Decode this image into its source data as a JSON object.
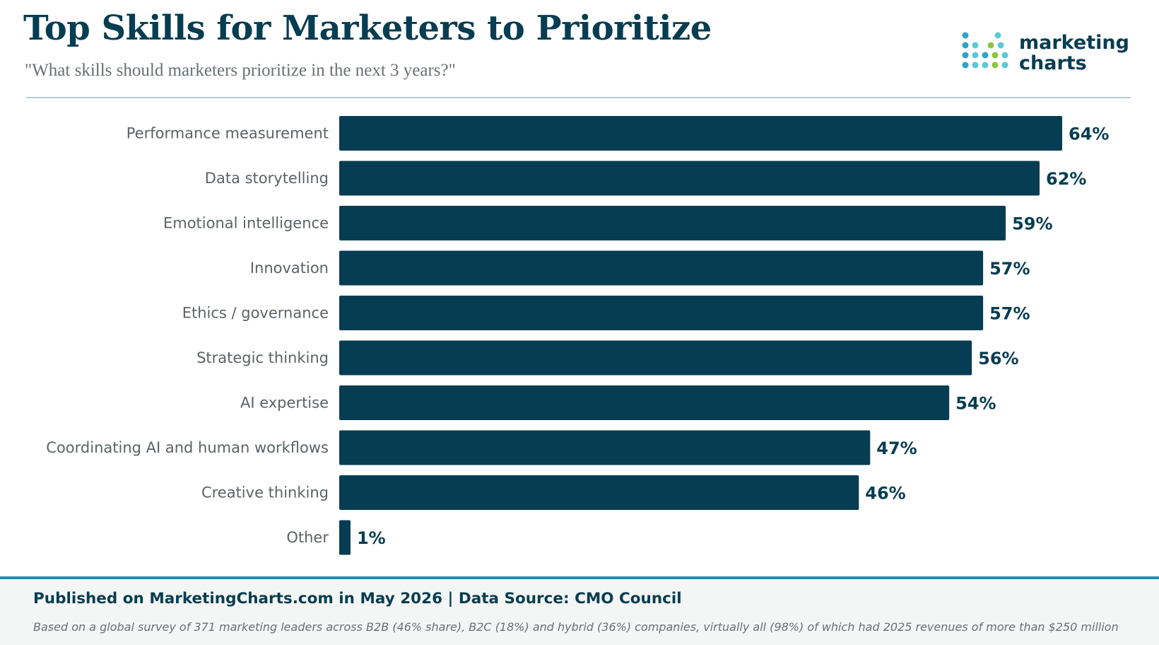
{
  "header": {
    "title": "Top Skills for Marketers to Prioritize",
    "subtitle": "\"What skills should marketers  prioritize in the next 3 years?\""
  },
  "logo": {
    "line1": "marketing",
    "line2": "charts",
    "colors": [
      "#2fa3c9",
      "#5cc9d9",
      "#8dc63f"
    ]
  },
  "chart_data": {
    "type": "bar",
    "orientation": "horizontal",
    "categories": [
      "Performance measurement",
      "Data storytelling",
      "Emotional intelligence",
      "Innovation",
      "Ethics / governance",
      "Strategic thinking",
      "AI expertise",
      "Coordinating AI and human workflows",
      "Creative thinking",
      "Other"
    ],
    "values": [
      64,
      62,
      59,
      57,
      57,
      56,
      54,
      47,
      46,
      1
    ],
    "value_labels": [
      "64%",
      "62%",
      "59%",
      "57%",
      "57%",
      "56%",
      "54%",
      "47%",
      "46%",
      "1%"
    ],
    "unit": "%",
    "xlim": [
      0,
      64
    ],
    "grid": false,
    "legend": "none",
    "bar_color": "#063d52"
  },
  "footer": {
    "published": "Published on MarketingCharts.com in May 2026 | Data Source: CMO Council",
    "note": "Based on a global survey of 371 marketing leaders across B2B (46% share), B2C (18%) and hybrid (36%) companies, virtually all (98%) of which had 2025 revenues of more than $250 million"
  }
}
